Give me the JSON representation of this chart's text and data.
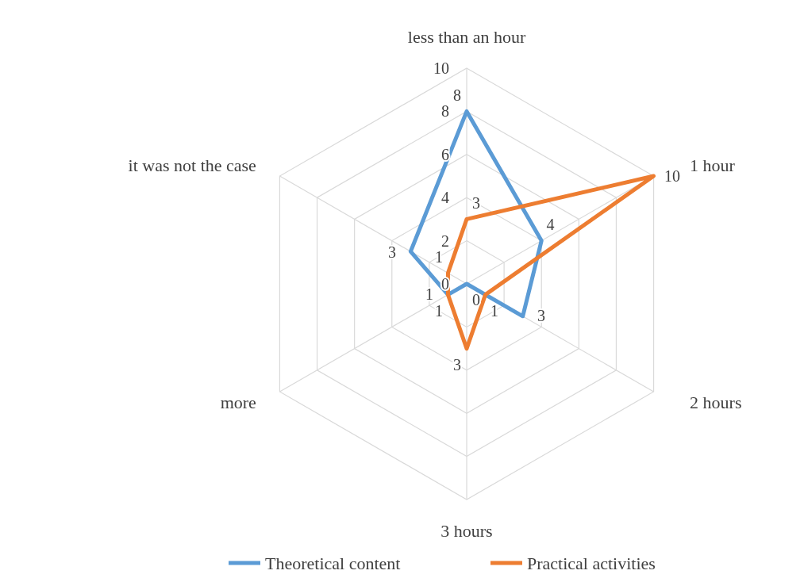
{
  "chart_data": {
    "type": "radar",
    "categories": [
      "less than an hour",
      "1 hour",
      "2 hours",
      "3 hours",
      "more",
      "it was not the case"
    ],
    "series": [
      {
        "name": "Theoretical content",
        "color": "#5b9bd5",
        "values": [
          8,
          4,
          3,
          0,
          1,
          3
        ]
      },
      {
        "name": "Practical activities",
        "color": "#ed7d31",
        "values": [
          3,
          10,
          1,
          3,
          1,
          1
        ]
      }
    ],
    "ylim": [
      0,
      10
    ],
    "yticks": [
      0,
      2,
      4,
      6,
      8,
      10
    ],
    "grid": true,
    "legend": "bottom",
    "data_labels": true,
    "marker": "none",
    "line_style": "solid"
  }
}
